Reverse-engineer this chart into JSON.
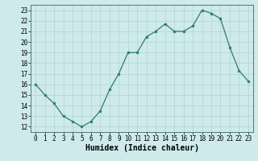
{
  "x": [
    0,
    1,
    2,
    3,
    4,
    5,
    6,
    7,
    8,
    9,
    10,
    11,
    12,
    13,
    14,
    15,
    16,
    17,
    18,
    19,
    20,
    21,
    22,
    23
  ],
  "y": [
    16,
    15,
    14.2,
    13,
    12.5,
    12,
    12.5,
    13.5,
    15.5,
    17,
    19,
    19,
    20.5,
    21,
    21.7,
    21,
    21,
    21.5,
    23,
    22.7,
    22.2,
    19.5,
    17.3,
    16.3
  ],
  "line_color": "#2e7d6e",
  "marker": "o",
  "marker_size": 2,
  "linewidth": 0.9,
  "bg_color": "#ceeaea",
  "grid_color": "#b0d4d4",
  "xlabel": "Humidex (Indice chaleur)",
  "xlabel_fontsize": 7,
  "xlim": [
    -0.5,
    23.5
  ],
  "ylim": [
    11.5,
    23.5
  ],
  "yticks": [
    12,
    13,
    14,
    15,
    16,
    17,
    18,
    19,
    20,
    21,
    22,
    23
  ],
  "xticks": [
    0,
    1,
    2,
    3,
    4,
    5,
    6,
    7,
    8,
    9,
    10,
    11,
    12,
    13,
    14,
    15,
    16,
    17,
    18,
    19,
    20,
    21,
    22,
    23
  ],
  "tick_fontsize": 5.5
}
